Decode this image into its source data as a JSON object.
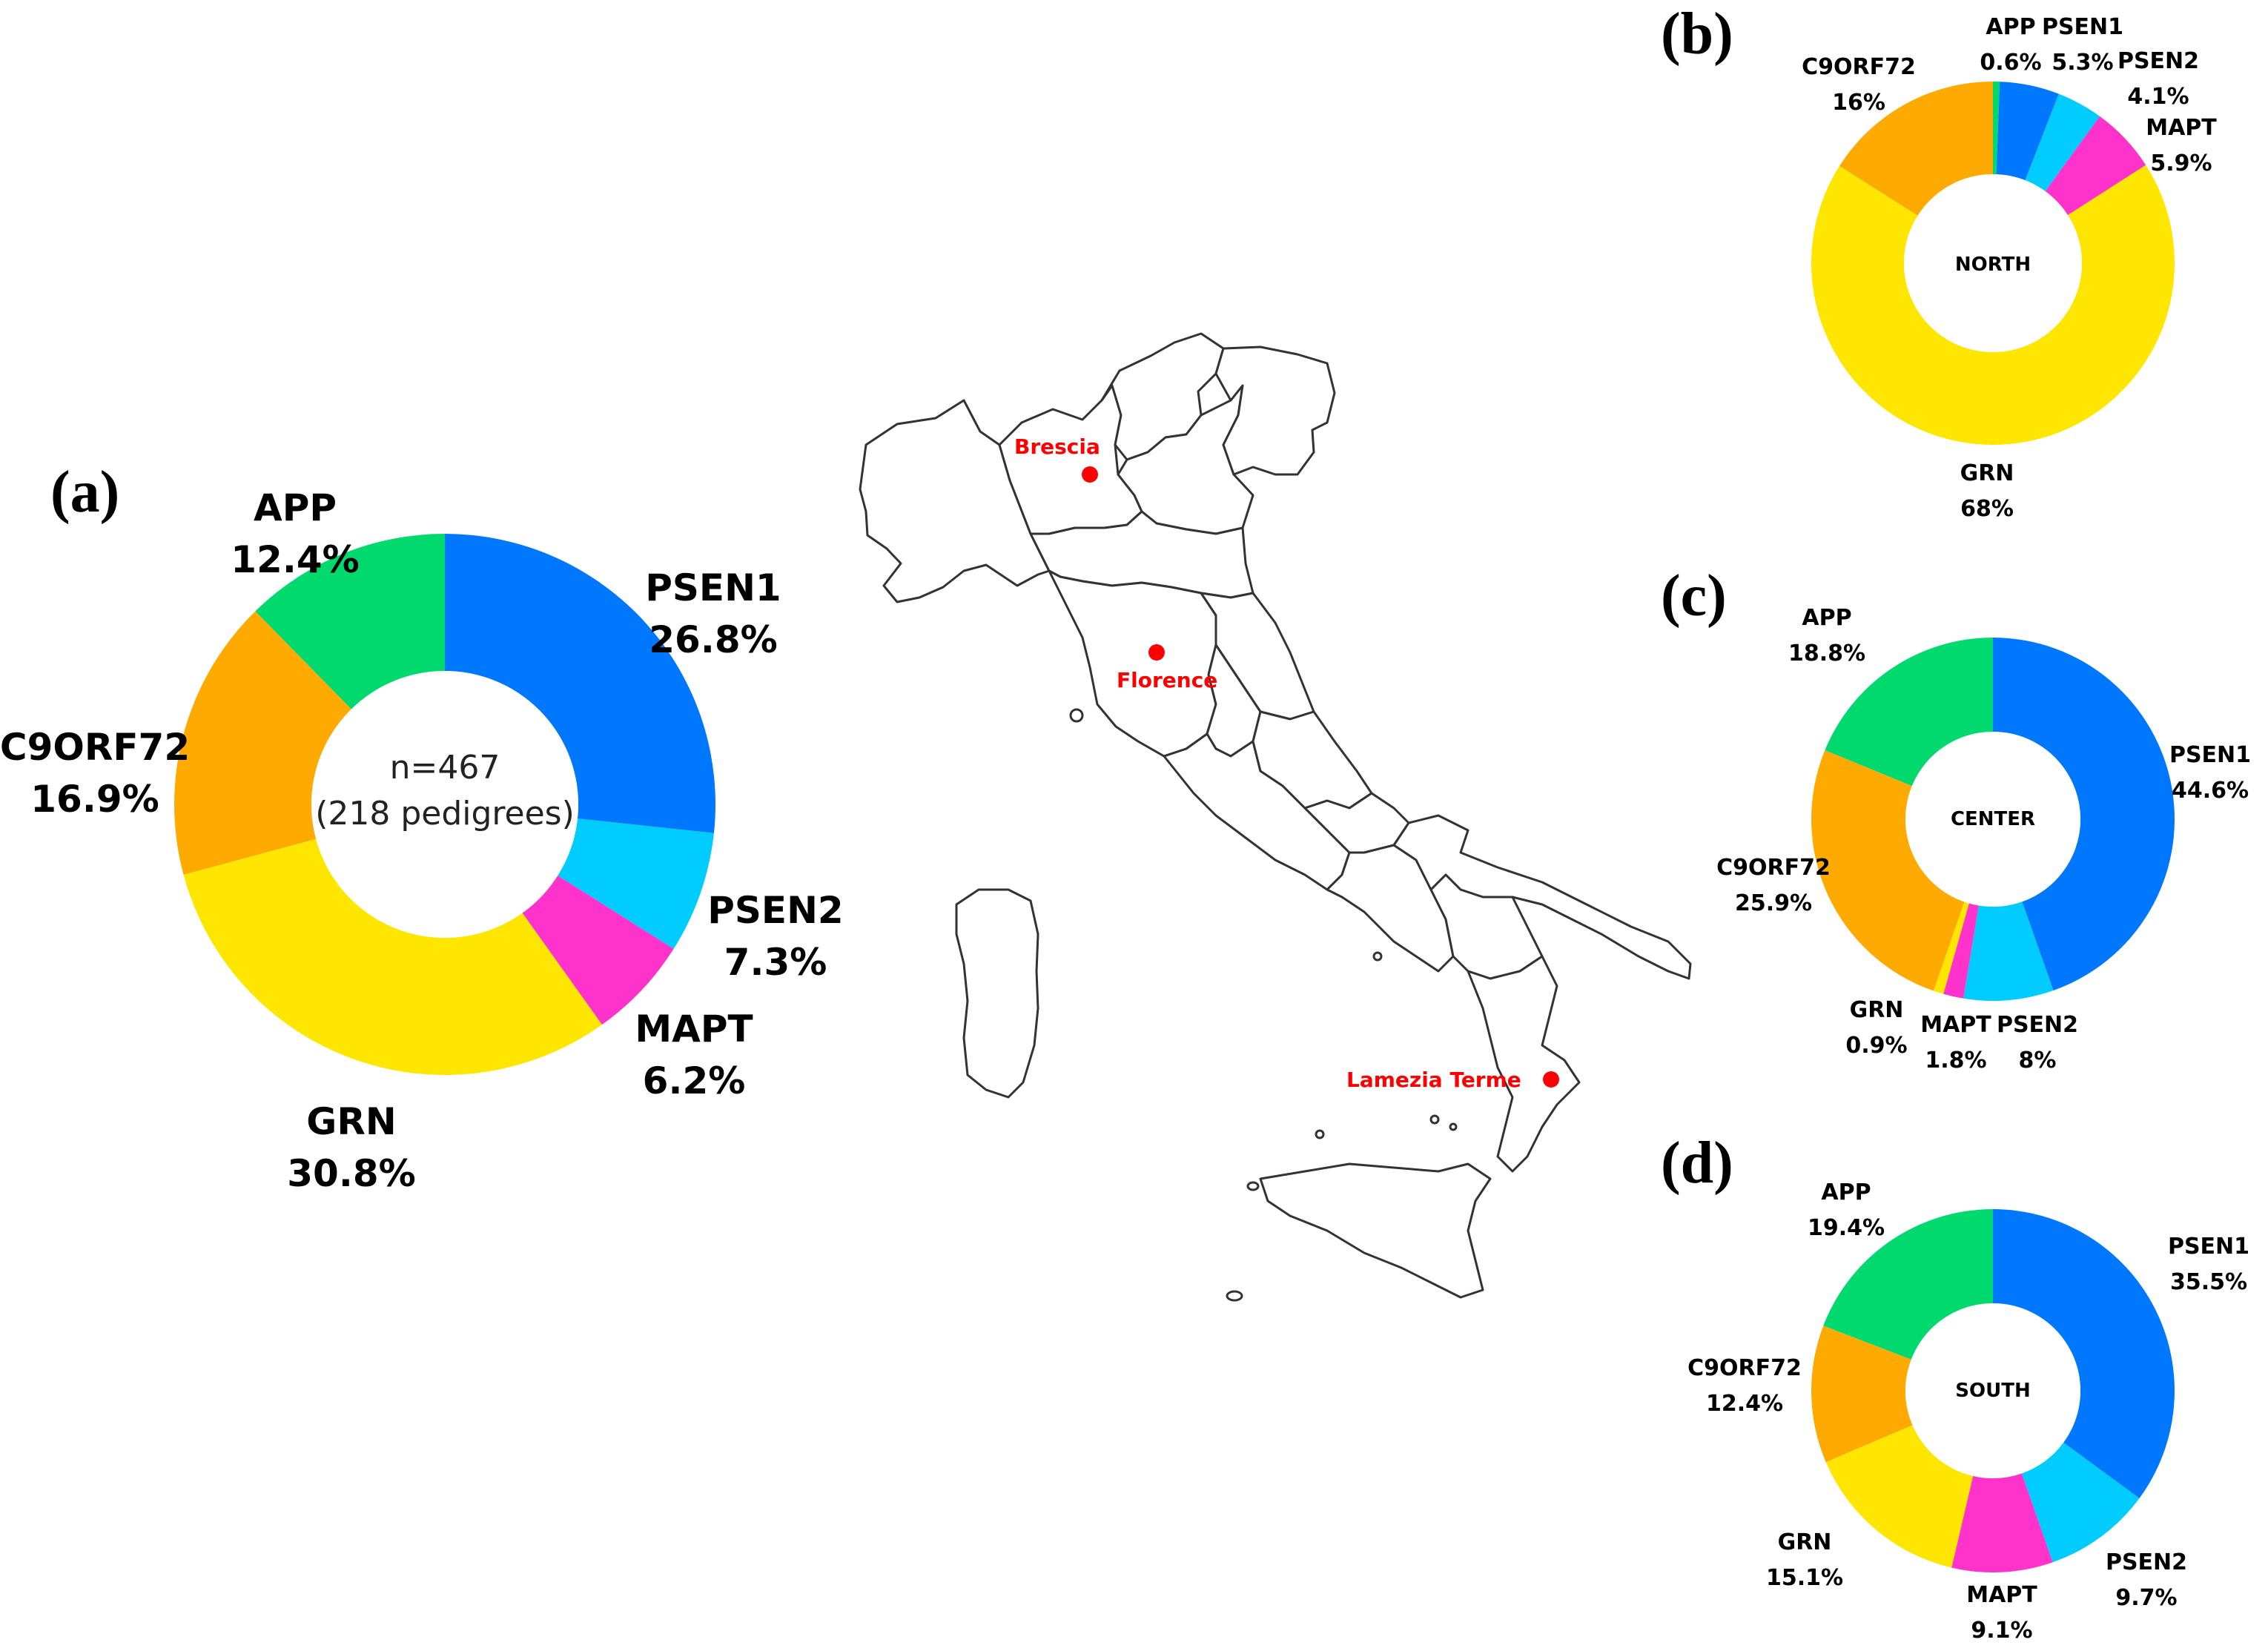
{
  "colors": {
    "APP": "#00D96D",
    "PSEN1": "#0077FF",
    "PSEN2": "#00CCFF",
    "MAPT": "#FF33CC",
    "GRN": "#FFE600",
    "C9ORF72": "#FFAA00",
    "city": "#FF0000"
  },
  "chart_data": [
    {
      "type": "pie",
      "panel": "(a)",
      "center_text": [
        "n=467",
        "(218 pedigrees)"
      ],
      "series": [
        {
          "name": "PSEN1",
          "value": 26.8,
          "label": "26.8%"
        },
        {
          "name": "PSEN2",
          "value": 7.3,
          "label": "7.3%"
        },
        {
          "name": "MAPT",
          "value": 6.2,
          "label": "6.2%"
        },
        {
          "name": "GRN",
          "value": 30.8,
          "label": "30.8%"
        },
        {
          "name": "C9ORF72",
          "value": 16.9,
          "label": "16.9%"
        },
        {
          "name": "APP",
          "value": 12.4,
          "label": "12.4%"
        }
      ]
    },
    {
      "type": "pie",
      "panel": "(b)",
      "center_text": [
        "NORTH"
      ],
      "series": [
        {
          "name": "APP",
          "value": 0.6,
          "label": "0.6%"
        },
        {
          "name": "PSEN1",
          "value": 5.3,
          "label": "5.3%"
        },
        {
          "name": "PSEN2",
          "value": 4.1,
          "label": "4.1%"
        },
        {
          "name": "MAPT",
          "value": 5.9,
          "label": "5.9%"
        },
        {
          "name": "GRN",
          "value": 68,
          "label": "68%"
        },
        {
          "name": "C9ORF72",
          "value": 16,
          "label": "16%"
        }
      ]
    },
    {
      "type": "pie",
      "panel": "(c)",
      "center_text": [
        "CENTER"
      ],
      "series": [
        {
          "name": "PSEN1",
          "value": 44.6,
          "label": "44.6%"
        },
        {
          "name": "PSEN2",
          "value": 8,
          "label": "8%"
        },
        {
          "name": "MAPT",
          "value": 1.8,
          "label": "1.8%"
        },
        {
          "name": "GRN",
          "value": 0.9,
          "label": "0.9%"
        },
        {
          "name": "C9ORF72",
          "value": 25.9,
          "label": "25.9%"
        },
        {
          "name": "APP",
          "value": 18.8,
          "label": "18.8%"
        }
      ]
    },
    {
      "type": "pie",
      "panel": "(d)",
      "center_text": [
        "SOUTH"
      ],
      "series": [
        {
          "name": "PSEN1",
          "value": 35.5,
          "label": "35.5%"
        },
        {
          "name": "PSEN2",
          "value": 9.7,
          "label": "9.7%"
        },
        {
          "name": "MAPT",
          "value": 9.1,
          "label": "9.1%"
        },
        {
          "name": "GRN",
          "value": 15.1,
          "label": "15.1%"
        },
        {
          "name": "C9ORF72",
          "value": 12.4,
          "label": "12.4%"
        },
        {
          "name": "APP",
          "value": 19.4,
          "label": "19.4%"
        }
      ]
    }
  ],
  "map": {
    "cities": [
      {
        "name": "Brescia"
      },
      {
        "name": "Florence"
      },
      {
        "name": "Lamezia Terme"
      }
    ]
  }
}
